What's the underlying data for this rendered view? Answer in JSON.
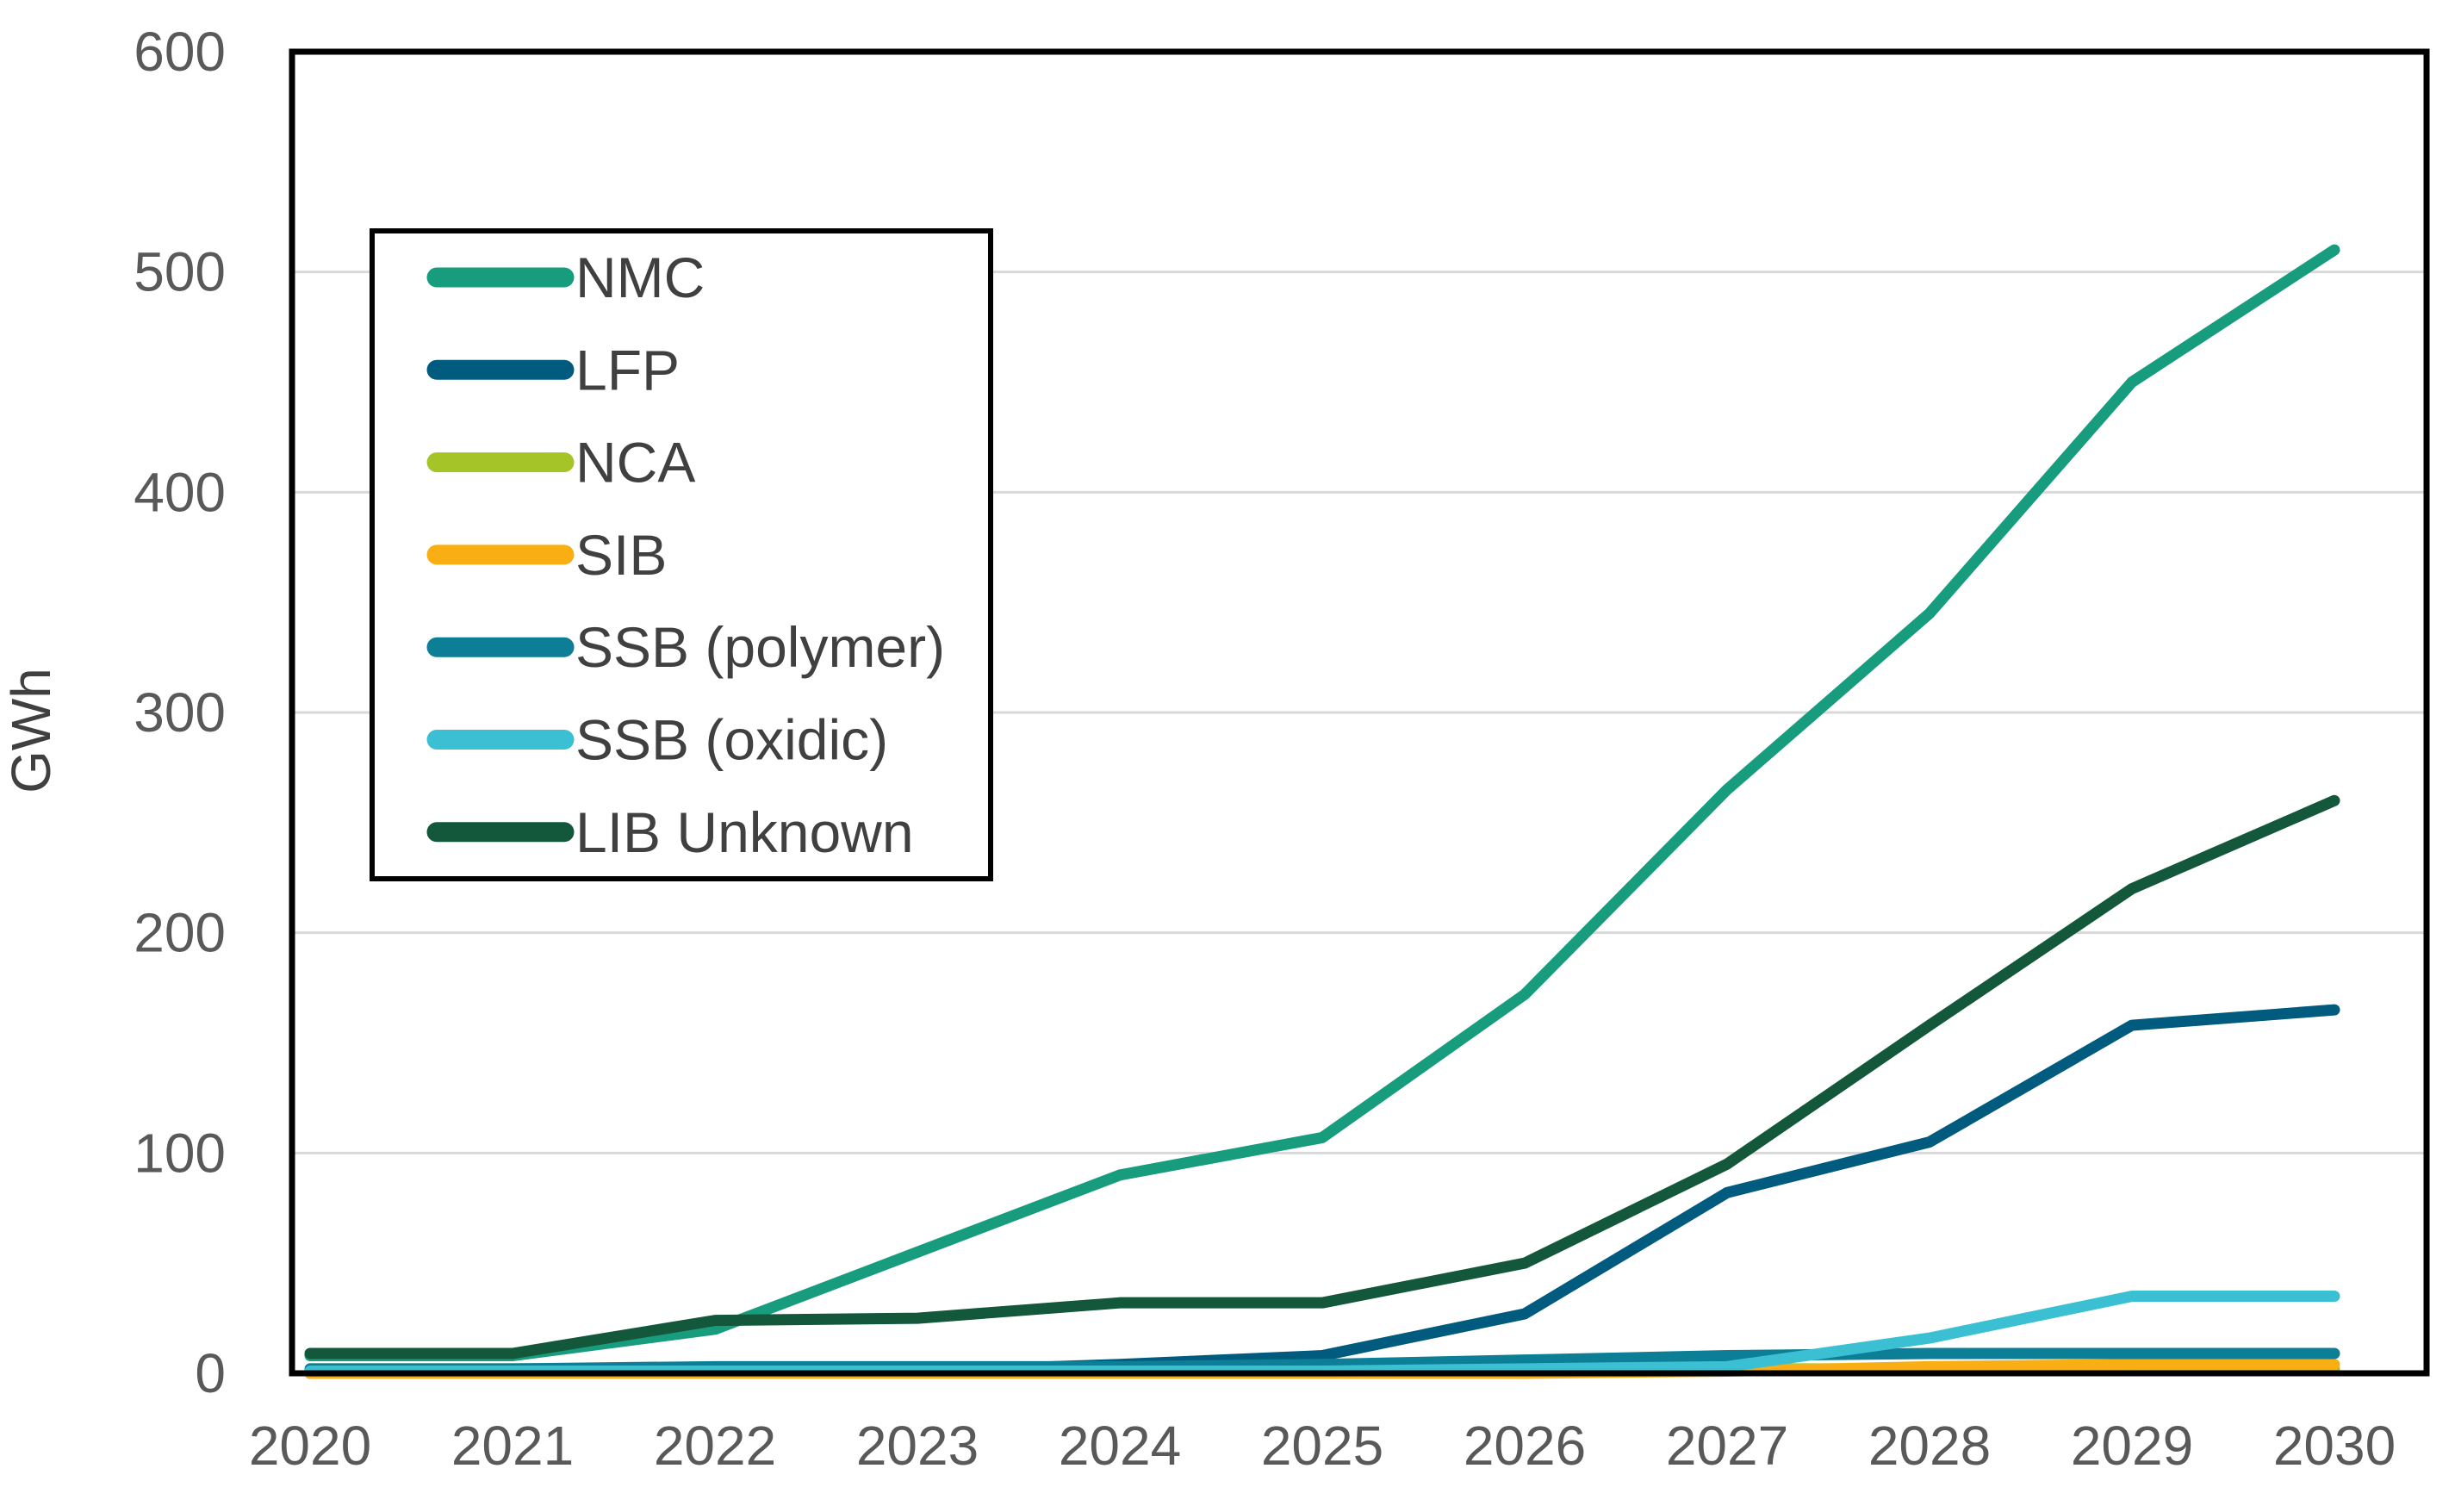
{
  "chart_data": {
    "type": "line",
    "title": "",
    "xlabel": "",
    "ylabel": "GWh",
    "x_categories": [
      "2020",
      "2021",
      "2022",
      "2023",
      "2024",
      "2025",
      "2026",
      "2027",
      "2028",
      "2029",
      "2030"
    ],
    "ylim": [
      0,
      600
    ],
    "ytick_step": 100,
    "y_tick_labels": [
      "0",
      "100",
      "200",
      "300",
      "400",
      "500",
      "600"
    ],
    "grid": "horizontal",
    "grid_color": "#D9D9D9",
    "axis_color": "#000000",
    "tick_text_color": "#595959",
    "legend_text_color": "#404040",
    "legend_position": "upper-left-inside-box",
    "series": [
      {
        "name": "NMC",
        "color": "#179C7D",
        "values": [
          8,
          8,
          20,
          55,
          90,
          107,
          172,
          265,
          345,
          450,
          510
        ]
      },
      {
        "name": "LFP",
        "color": "#005B7F",
        "values": [
          0,
          0,
          0,
          1,
          4,
          8,
          27,
          82,
          105,
          158,
          165
        ]
      },
      {
        "name": "NCA",
        "color": "#A4C428",
        "values": [
          2,
          2,
          2,
          2,
          2,
          2,
          2,
          2,
          2,
          2,
          2
        ]
      },
      {
        "name": "SIB",
        "color": "#F9AE13",
        "values": [
          0,
          0,
          0,
          0,
          0,
          0,
          0,
          1,
          3,
          4,
          4
        ]
      },
      {
        "name": "SSB (polymer)",
        "color": "#0C7E95",
        "values": [
          2,
          2,
          3,
          3,
          3,
          4,
          6,
          8,
          9,
          9,
          9
        ]
      },
      {
        "name": "SSB (oxidic)",
        "color": "#3AC0D2",
        "values": [
          1,
          1,
          1,
          1,
          1,
          1,
          2,
          3,
          16,
          35,
          35
        ]
      },
      {
        "name": "LIB Unknown",
        "color": "#14583C",
        "values": [
          9,
          9,
          24,
          25,
          32,
          32,
          50,
          95,
          158,
          220,
          260
        ]
      }
    ]
  }
}
